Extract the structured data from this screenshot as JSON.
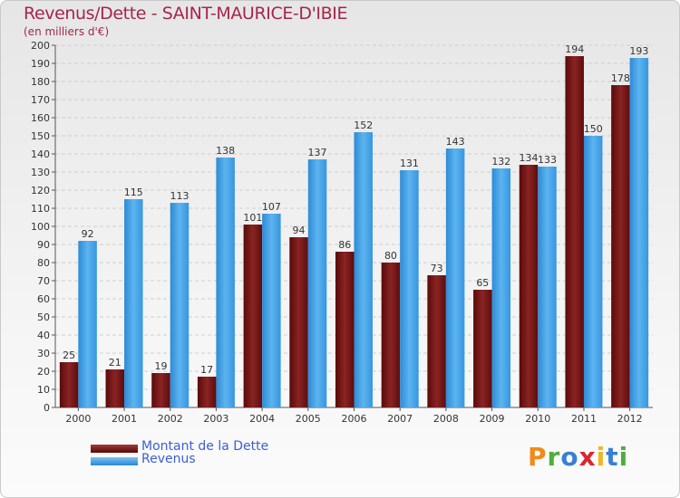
{
  "header": {
    "title": "Revenus/Dette - SAINT-MAURICE-D'IBIE",
    "subtitle": "(en milliers d'€)"
  },
  "brand": {
    "letters": [
      "P",
      "r",
      "o",
      "x",
      "i",
      "t",
      "i"
    ],
    "colors": [
      "#f08a1c",
      "#4fae3c",
      "#3a7fd6",
      "#d9272e",
      "#f2b51c",
      "#3a7fd6",
      "#4fae3c"
    ]
  },
  "chart_data": {
    "type": "bar",
    "categories": [
      "2000",
      "2001",
      "2002",
      "2003",
      "2004",
      "2005",
      "2006",
      "2007",
      "2008",
      "2009",
      "2010",
      "2011",
      "2012"
    ],
    "series": [
      {
        "name": "Montant de la Dette",
        "color": "#7a1212",
        "values": [
          25,
          21,
          19,
          17,
          101,
          94,
          86,
          80,
          73,
          65,
          134,
          194,
          178
        ]
      },
      {
        "name": "Revenus",
        "color": "#3d9ce4",
        "values": [
          92,
          115,
          113,
          138,
          107,
          137,
          152,
          131,
          143,
          132,
          133,
          150,
          193
        ]
      }
    ],
    "ylim": [
      0,
      200
    ],
    "yticks": [
      0,
      10,
      20,
      30,
      40,
      50,
      60,
      70,
      80,
      90,
      100,
      110,
      120,
      130,
      140,
      150,
      160,
      170,
      180,
      190,
      200
    ],
    "grid": true,
    "legend": "bottom-left",
    "data_labels": true
  }
}
